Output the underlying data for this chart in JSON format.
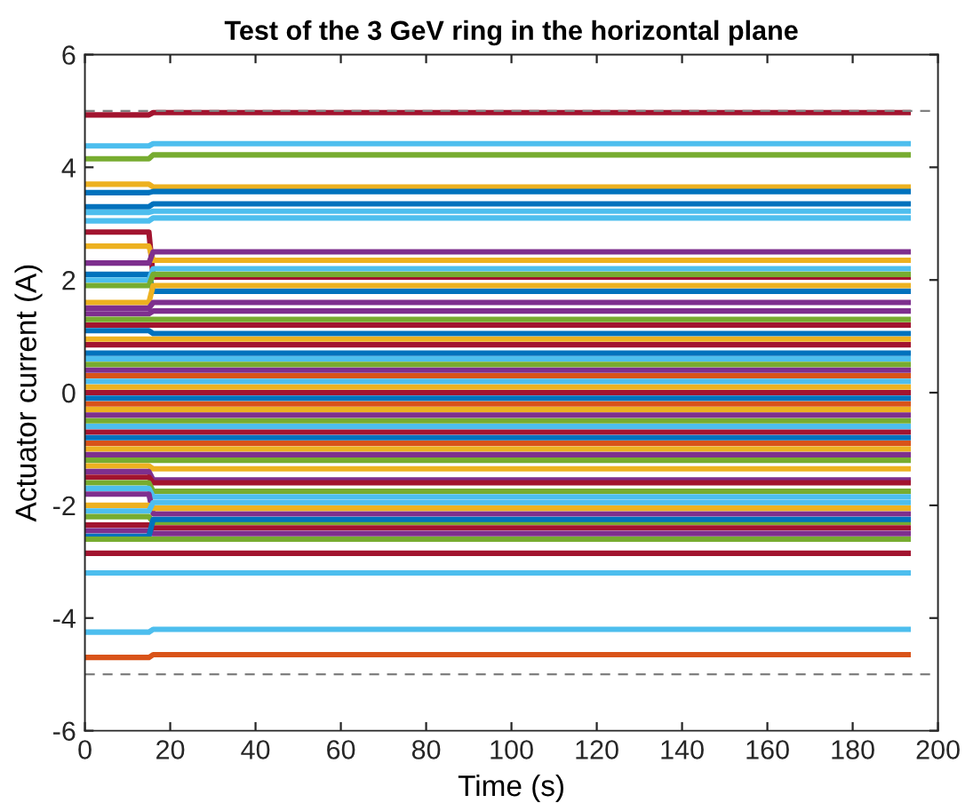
{
  "chart_data": {
    "type": "line",
    "title": "Test of the 3 GeV ring in the horizontal plane",
    "xlabel": "Time (s)",
    "ylabel": "Actuator current (A)",
    "x": [
      0,
      15,
      16,
      193
    ],
    "xlim": [
      0,
      200
    ],
    "xticks": [
      0,
      20,
      40,
      60,
      80,
      100,
      120,
      140,
      160,
      180,
      200
    ],
    "ylim": [
      -6,
      6
    ],
    "yticks": [
      -6,
      -4,
      -2,
      0,
      2,
      4,
      6
    ],
    "grid": false,
    "legend": false,
    "marker": "none",
    "line_style": "solid",
    "ref_lines": [
      {
        "axis": "y",
        "value": 5,
        "color": "#808080",
        "line_style": "dashed"
      },
      {
        "axis": "y",
        "value": -5,
        "color": "#808080",
        "line_style": "dashed"
      }
    ],
    "series": [
      {
        "color": "#a2142f",
        "values": [
          4.93,
          4.93,
          4.97,
          4.97
        ]
      },
      {
        "color": "#4dbeee",
        "values": [
          4.38,
          4.38,
          4.42,
          4.42
        ]
      },
      {
        "color": "#77ac30",
        "values": [
          4.15,
          4.15,
          4.22,
          4.22
        ]
      },
      {
        "color": "#edb120",
        "values": [
          3.7,
          3.7,
          3.65,
          3.65
        ]
      },
      {
        "color": "#0072bd",
        "values": [
          3.55,
          3.55,
          3.57,
          3.57
        ]
      },
      {
        "color": "#0072bd",
        "values": [
          3.3,
          3.3,
          3.35,
          3.35
        ]
      },
      {
        "color": "#4dbeee",
        "values": [
          3.2,
          3.2,
          3.22,
          3.22
        ]
      },
      {
        "color": "#4dbeee",
        "values": [
          3.05,
          3.05,
          3.1,
          3.1
        ]
      },
      {
        "color": "#a2142f",
        "values": [
          2.85,
          2.85,
          2.05,
          2.05
        ]
      },
      {
        "color": "#edb120",
        "values": [
          2.6,
          2.6,
          2.35,
          2.35
        ]
      },
      {
        "color": "#7e2f8e",
        "values": [
          2.3,
          2.3,
          2.5,
          2.5
        ]
      },
      {
        "color": "#0072bd",
        "values": [
          2.1,
          2.1,
          1.8,
          1.8
        ]
      },
      {
        "color": "#4dbeee",
        "values": [
          2.0,
          2.0,
          2.2,
          2.2
        ]
      },
      {
        "color": "#77ac30",
        "values": [
          1.9,
          1.9,
          2.1,
          2.1
        ]
      },
      {
        "color": "#edb120",
        "values": [
          1.6,
          1.6,
          1.9,
          1.9
        ]
      },
      {
        "color": "#7e2f8e",
        "values": [
          1.5,
          1.5,
          1.6,
          1.6
        ]
      },
      {
        "color": "#7e2f8e",
        "values": [
          1.4,
          1.4,
          1.45,
          1.45
        ]
      },
      {
        "color": "#77ac30",
        "values": [
          1.3,
          1.3,
          1.3,
          1.3
        ]
      },
      {
        "color": "#a2142f",
        "values": [
          1.2,
          1.2,
          1.2,
          1.2
        ]
      },
      {
        "color": "#0072bd",
        "values": [
          1.1,
          1.1,
          1.05,
          1.05
        ]
      },
      {
        "color": "#edb120",
        "values": [
          0.95,
          0.95,
          0.95,
          0.95
        ]
      },
      {
        "color": "#a2142f",
        "values": [
          0.85,
          0.85,
          0.85,
          0.85
        ]
      },
      {
        "color": "#0072bd",
        "values": [
          0.7,
          0.7,
          0.7,
          0.7
        ]
      },
      {
        "color": "#4dbeee",
        "values": [
          0.6,
          0.6,
          0.6,
          0.6
        ]
      },
      {
        "color": "#77ac30",
        "values": [
          0.5,
          0.5,
          0.5,
          0.5
        ]
      },
      {
        "color": "#7e2f8e",
        "values": [
          0.4,
          0.4,
          0.4,
          0.4
        ]
      },
      {
        "color": "#d95319",
        "values": [
          0.3,
          0.3,
          0.3,
          0.3
        ]
      },
      {
        "color": "#4dbeee",
        "values": [
          0.2,
          0.2,
          0.2,
          0.2
        ]
      },
      {
        "color": "#edb120",
        "values": [
          0.1,
          0.1,
          0.1,
          0.1
        ]
      },
      {
        "color": "#a2142f",
        "values": [
          0.0,
          0.0,
          0.0,
          0.0
        ]
      },
      {
        "color": "#0072bd",
        "values": [
          -0.1,
          -0.1,
          -0.1,
          -0.1
        ]
      },
      {
        "color": "#d95319",
        "values": [
          -0.2,
          -0.2,
          -0.2,
          -0.2
        ]
      },
      {
        "color": "#edb120",
        "values": [
          -0.3,
          -0.3,
          -0.3,
          -0.3
        ]
      },
      {
        "color": "#7e2f8e",
        "values": [
          -0.4,
          -0.4,
          -0.4,
          -0.4
        ]
      },
      {
        "color": "#77ac30",
        "values": [
          -0.5,
          -0.5,
          -0.5,
          -0.5
        ]
      },
      {
        "color": "#4dbeee",
        "values": [
          -0.6,
          -0.6,
          -0.6,
          -0.6
        ]
      },
      {
        "color": "#a2142f",
        "values": [
          -0.7,
          -0.7,
          -0.7,
          -0.7
        ]
      },
      {
        "color": "#0072bd",
        "values": [
          -0.8,
          -0.8,
          -0.8,
          -0.8
        ]
      },
      {
        "color": "#d95319",
        "values": [
          -0.9,
          -0.9,
          -0.9,
          -0.9
        ]
      },
      {
        "color": "#edb120",
        "values": [
          -1.0,
          -1.0,
          -1.0,
          -1.0
        ]
      },
      {
        "color": "#7e2f8e",
        "values": [
          -1.1,
          -1.1,
          -1.1,
          -1.1
        ]
      },
      {
        "color": "#77ac30",
        "values": [
          -1.2,
          -1.2,
          -1.2,
          -1.2
        ]
      },
      {
        "color": "#edb120",
        "values": [
          -1.3,
          -1.3,
          -1.35,
          -1.35
        ]
      },
      {
        "color": "#7e2f8e",
        "values": [
          -1.4,
          -1.4,
          -1.55,
          -1.55
        ]
      },
      {
        "color": "#a2142f",
        "values": [
          -1.5,
          -1.5,
          -1.6,
          -1.6
        ]
      },
      {
        "color": "#77ac30",
        "values": [
          -1.6,
          -1.6,
          -1.75,
          -1.75
        ]
      },
      {
        "color": "#4dbeee",
        "values": [
          -1.7,
          -1.7,
          -1.85,
          -1.85
        ]
      },
      {
        "color": "#7e2f8e",
        "values": [
          -1.8,
          -1.8,
          -2.15,
          -2.15
        ]
      },
      {
        "color": "#edb120",
        "values": [
          -2.0,
          -2.0,
          -2.05,
          -2.05
        ]
      },
      {
        "color": "#4dbeee",
        "values": [
          -2.1,
          -2.1,
          -1.95,
          -1.95
        ]
      },
      {
        "color": "#77ac30",
        "values": [
          -2.2,
          -2.2,
          -2.3,
          -2.3
        ]
      },
      {
        "color": "#a2142f",
        "values": [
          -2.35,
          -2.35,
          -2.4,
          -2.4
        ]
      },
      {
        "color": "#7e2f8e",
        "values": [
          -2.45,
          -2.45,
          -2.5,
          -2.5
        ]
      },
      {
        "color": "#0072bd",
        "values": [
          -2.55,
          -2.55,
          -2.25,
          -2.25
        ]
      },
      {
        "color": "#77ac30",
        "values": [
          -2.6,
          -2.6,
          -2.6,
          -2.6
        ]
      },
      {
        "color": "#a2142f",
        "values": [
          -2.85,
          -2.85,
          -2.85,
          -2.85
        ]
      },
      {
        "color": "#4dbeee",
        "values": [
          -3.2,
          -3.2,
          -3.2,
          -3.2
        ]
      },
      {
        "color": "#4dbeee",
        "values": [
          -4.25,
          -4.25,
          -4.2,
          -4.2
        ]
      },
      {
        "color": "#d95319",
        "values": [
          -4.7,
          -4.7,
          -4.65,
          -4.65
        ]
      }
    ]
  }
}
